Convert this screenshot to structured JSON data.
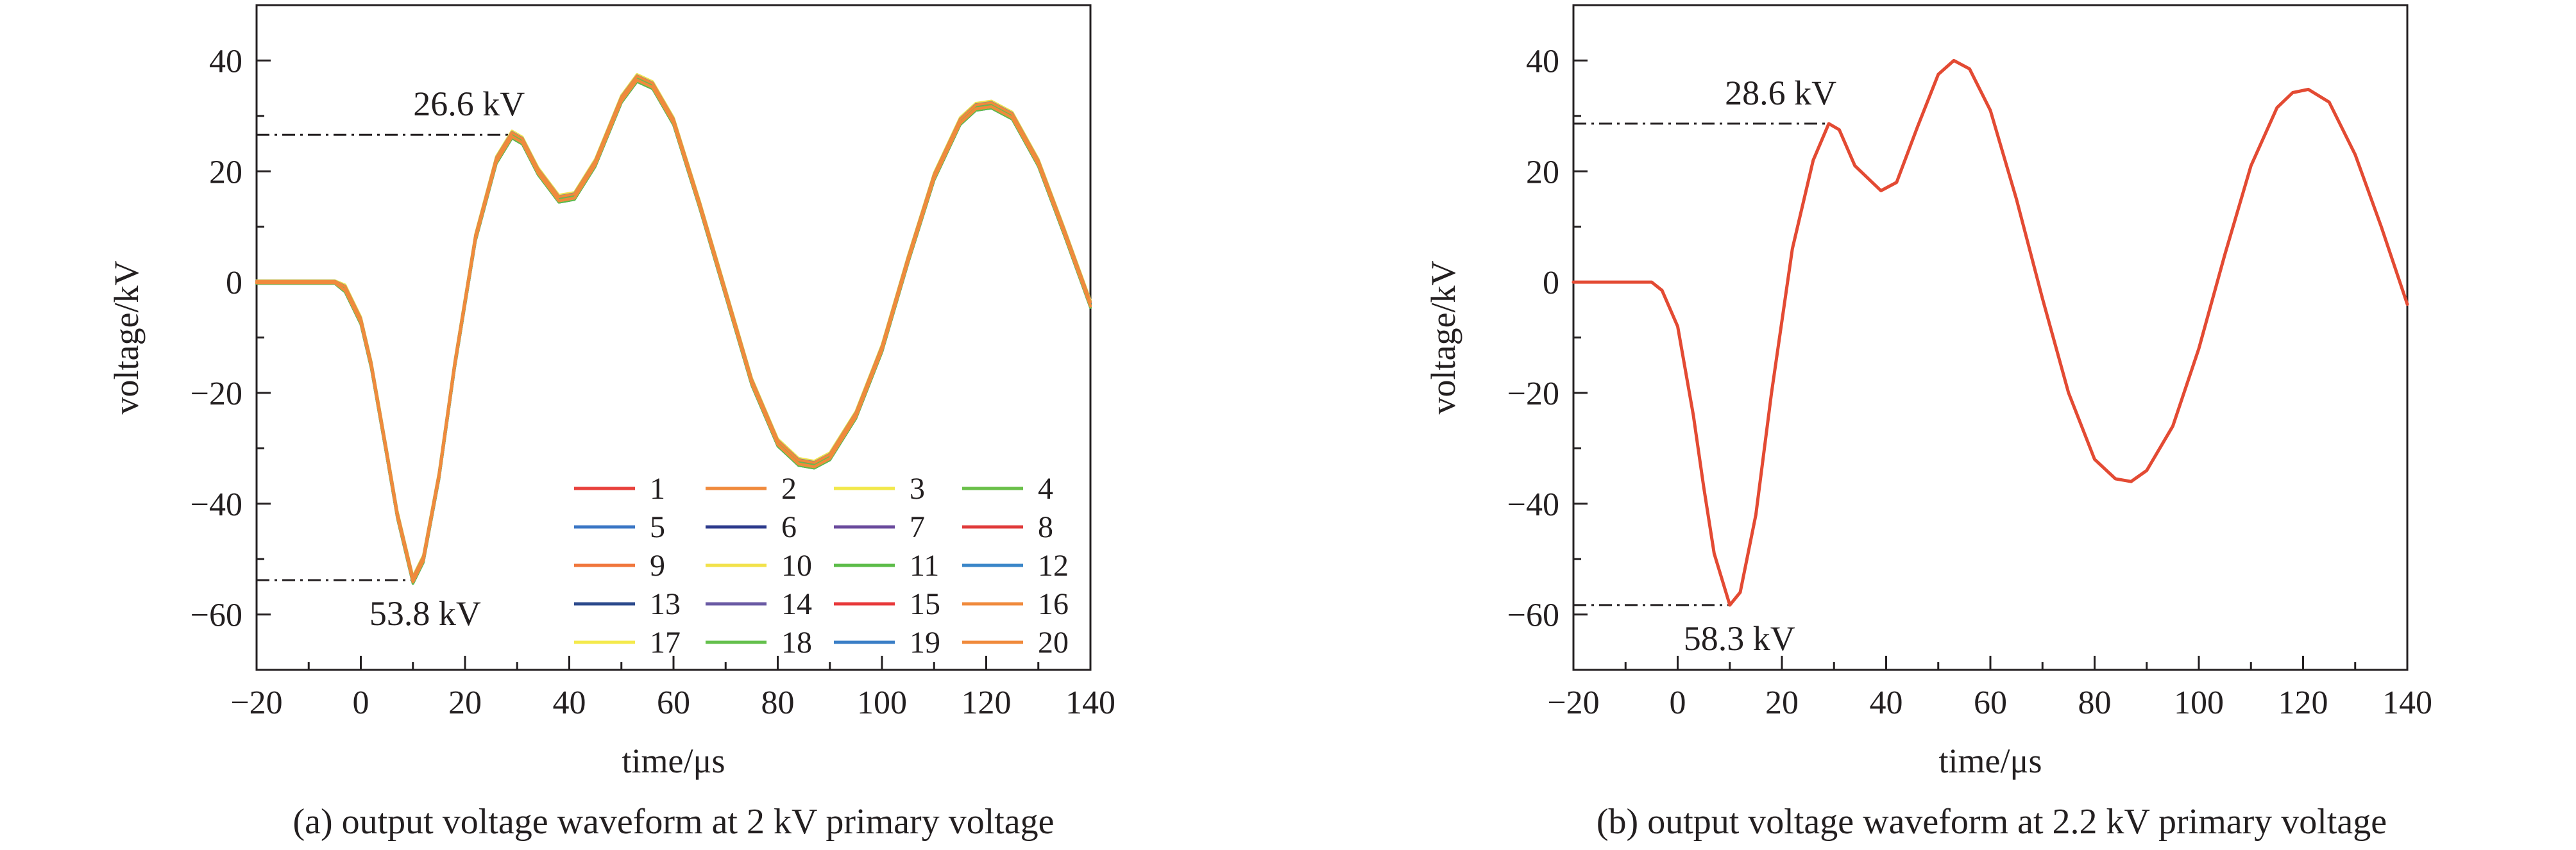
{
  "charts": [
    {
      "id": "a",
      "caption": "(a) output voltage waveform at 2 kV primary voltage",
      "xlabel": "time/μs",
      "ylabel": "voltage/kV",
      "xlim": [
        -20,
        140
      ],
      "ylim": [
        -70,
        50
      ],
      "xticks": [
        -20,
        0,
        20,
        40,
        60,
        80,
        100,
        120,
        140
      ],
      "yticks": [
        -60,
        -40,
        -20,
        0,
        20,
        40
      ],
      "annotations": [
        {
          "text": "26.6 kV",
          "x": 30,
          "y": 26.6
        },
        {
          "text": "53.8 kV",
          "x": 10.5,
          "y": -53.8
        }
      ],
      "legend_position": "bottom-right",
      "series": [
        {
          "name": "1",
          "color": "#e8413c"
        },
        {
          "name": "2",
          "color": "#f08a3c"
        },
        {
          "name": "3",
          "color": "#f2e84a"
        },
        {
          "name": "4",
          "color": "#6ac049"
        },
        {
          "name": "5",
          "color": "#3a76c4"
        },
        {
          "name": "6",
          "color": "#2c3a8c"
        },
        {
          "name": "7",
          "color": "#6a4a9c"
        },
        {
          "name": "8",
          "color": "#e03a3a"
        },
        {
          "name": "9",
          "color": "#f0763c"
        },
        {
          "name": "10",
          "color": "#f2e24a"
        },
        {
          "name": "11",
          "color": "#5cbc48"
        },
        {
          "name": "12",
          "color": "#3a86c8"
        },
        {
          "name": "13",
          "color": "#2c4a8c"
        },
        {
          "name": "14",
          "color": "#6a5aa4"
        },
        {
          "name": "15",
          "color": "#e8383a"
        },
        {
          "name": "16",
          "color": "#f08a3c"
        },
        {
          "name": "17",
          "color": "#f4ea4c"
        },
        {
          "name": "18",
          "color": "#64c04c"
        },
        {
          "name": "19",
          "color": "#3a7ec6"
        },
        {
          "name": "20",
          "color": "#f08a3c"
        }
      ]
    },
    {
      "id": "b",
      "caption": "(b) output voltage waveform at 2.2 kV primary voltage",
      "xlabel": "time/μs",
      "ylabel": "voltage/kV",
      "xlim": [
        -20,
        140
      ],
      "ylim": [
        -70,
        50
      ],
      "xticks": [
        -20,
        0,
        20,
        40,
        60,
        80,
        100,
        120,
        140
      ],
      "yticks": [
        -60,
        -40,
        -20,
        0,
        20,
        40
      ],
      "annotations": [
        {
          "text": "28.6 kV",
          "x": 29,
          "y": 28.6
        },
        {
          "text": "58.3 kV",
          "x": 10,
          "y": -58.3
        }
      ],
      "series": [
        {
          "name": "",
          "color": "#e34a33"
        }
      ]
    }
  ],
  "chart_data": [
    {
      "type": "line",
      "x": [
        -20,
        -5,
        -3,
        0,
        2,
        5,
        7,
        10,
        12,
        15,
        18,
        22,
        26,
        29,
        31,
        34,
        38,
        41,
        45,
        50,
        53,
        56,
        60,
        65,
        70,
        75,
        80,
        84,
        87,
        90,
        95,
        100,
        105,
        110,
        115,
        118,
        121,
        125,
        130,
        135,
        140
      ],
      "series_values": [
        0,
        0,
        -1.2,
        -7,
        -15,
        -31,
        -42,
        -53.8,
        -50,
        -35,
        -15,
        8,
        22,
        26.6,
        25.5,
        20,
        15,
        15.5,
        21.5,
        33,
        36.8,
        35.5,
        29,
        14,
        -2,
        -18,
        -29,
        -32.5,
        -33,
        -31.5,
        -24,
        -12,
        4,
        19,
        29,
        31.6,
        32,
        30,
        21.5,
        9,
        -4
      ],
      "series": [
        {
          "name": "1"
        },
        {
          "name": "2"
        },
        {
          "name": "3"
        },
        {
          "name": "4"
        },
        {
          "name": "5"
        },
        {
          "name": "6"
        },
        {
          "name": "7"
        },
        {
          "name": "8"
        },
        {
          "name": "9"
        },
        {
          "name": "10"
        },
        {
          "name": "11"
        },
        {
          "name": "12"
        },
        {
          "name": "13"
        },
        {
          "name": "14"
        },
        {
          "name": "15"
        },
        {
          "name": "16"
        },
        {
          "name": "17"
        },
        {
          "name": "18"
        },
        {
          "name": "19"
        },
        {
          "name": "20"
        }
      ],
      "xlabel": "time/μs",
      "ylabel": "voltage/kV",
      "xlim": [
        -20,
        140
      ],
      "ylim": [
        -70,
        50
      ],
      "grid": false,
      "legend": "bottom-right"
    },
    {
      "type": "line",
      "x": [
        -20,
        -5,
        -3,
        0,
        3,
        5,
        7,
        10,
        12,
        15,
        18,
        22,
        26,
        29,
        31,
        34,
        39,
        42,
        46,
        50,
        53,
        56,
        60,
        65,
        70,
        75,
        80,
        84,
        87,
        90,
        95,
        100,
        105,
        110,
        115,
        118,
        121,
        125,
        130,
        135,
        140
      ],
      "series": [
        {
          "name": "",
          "values": [
            0,
            0,
            -1.5,
            -8,
            -24,
            -37,
            -49,
            -58.3,
            -56,
            -42,
            -20,
            6,
            22,
            28.6,
            27.5,
            21,
            16.5,
            18,
            28,
            37.5,
            40,
            38.5,
            31,
            15,
            -3,
            -20,
            -32,
            -35.5,
            -36,
            -34,
            -26,
            -12,
            5,
            21,
            31.5,
            34.2,
            34.8,
            32.5,
            23,
            10,
            -4
          ]
        }
      ],
      "xlabel": "time/μs",
      "ylabel": "voltage/kV",
      "xlim": [
        -20,
        140
      ],
      "ylim": [
        -70,
        50
      ],
      "grid": false
    }
  ]
}
